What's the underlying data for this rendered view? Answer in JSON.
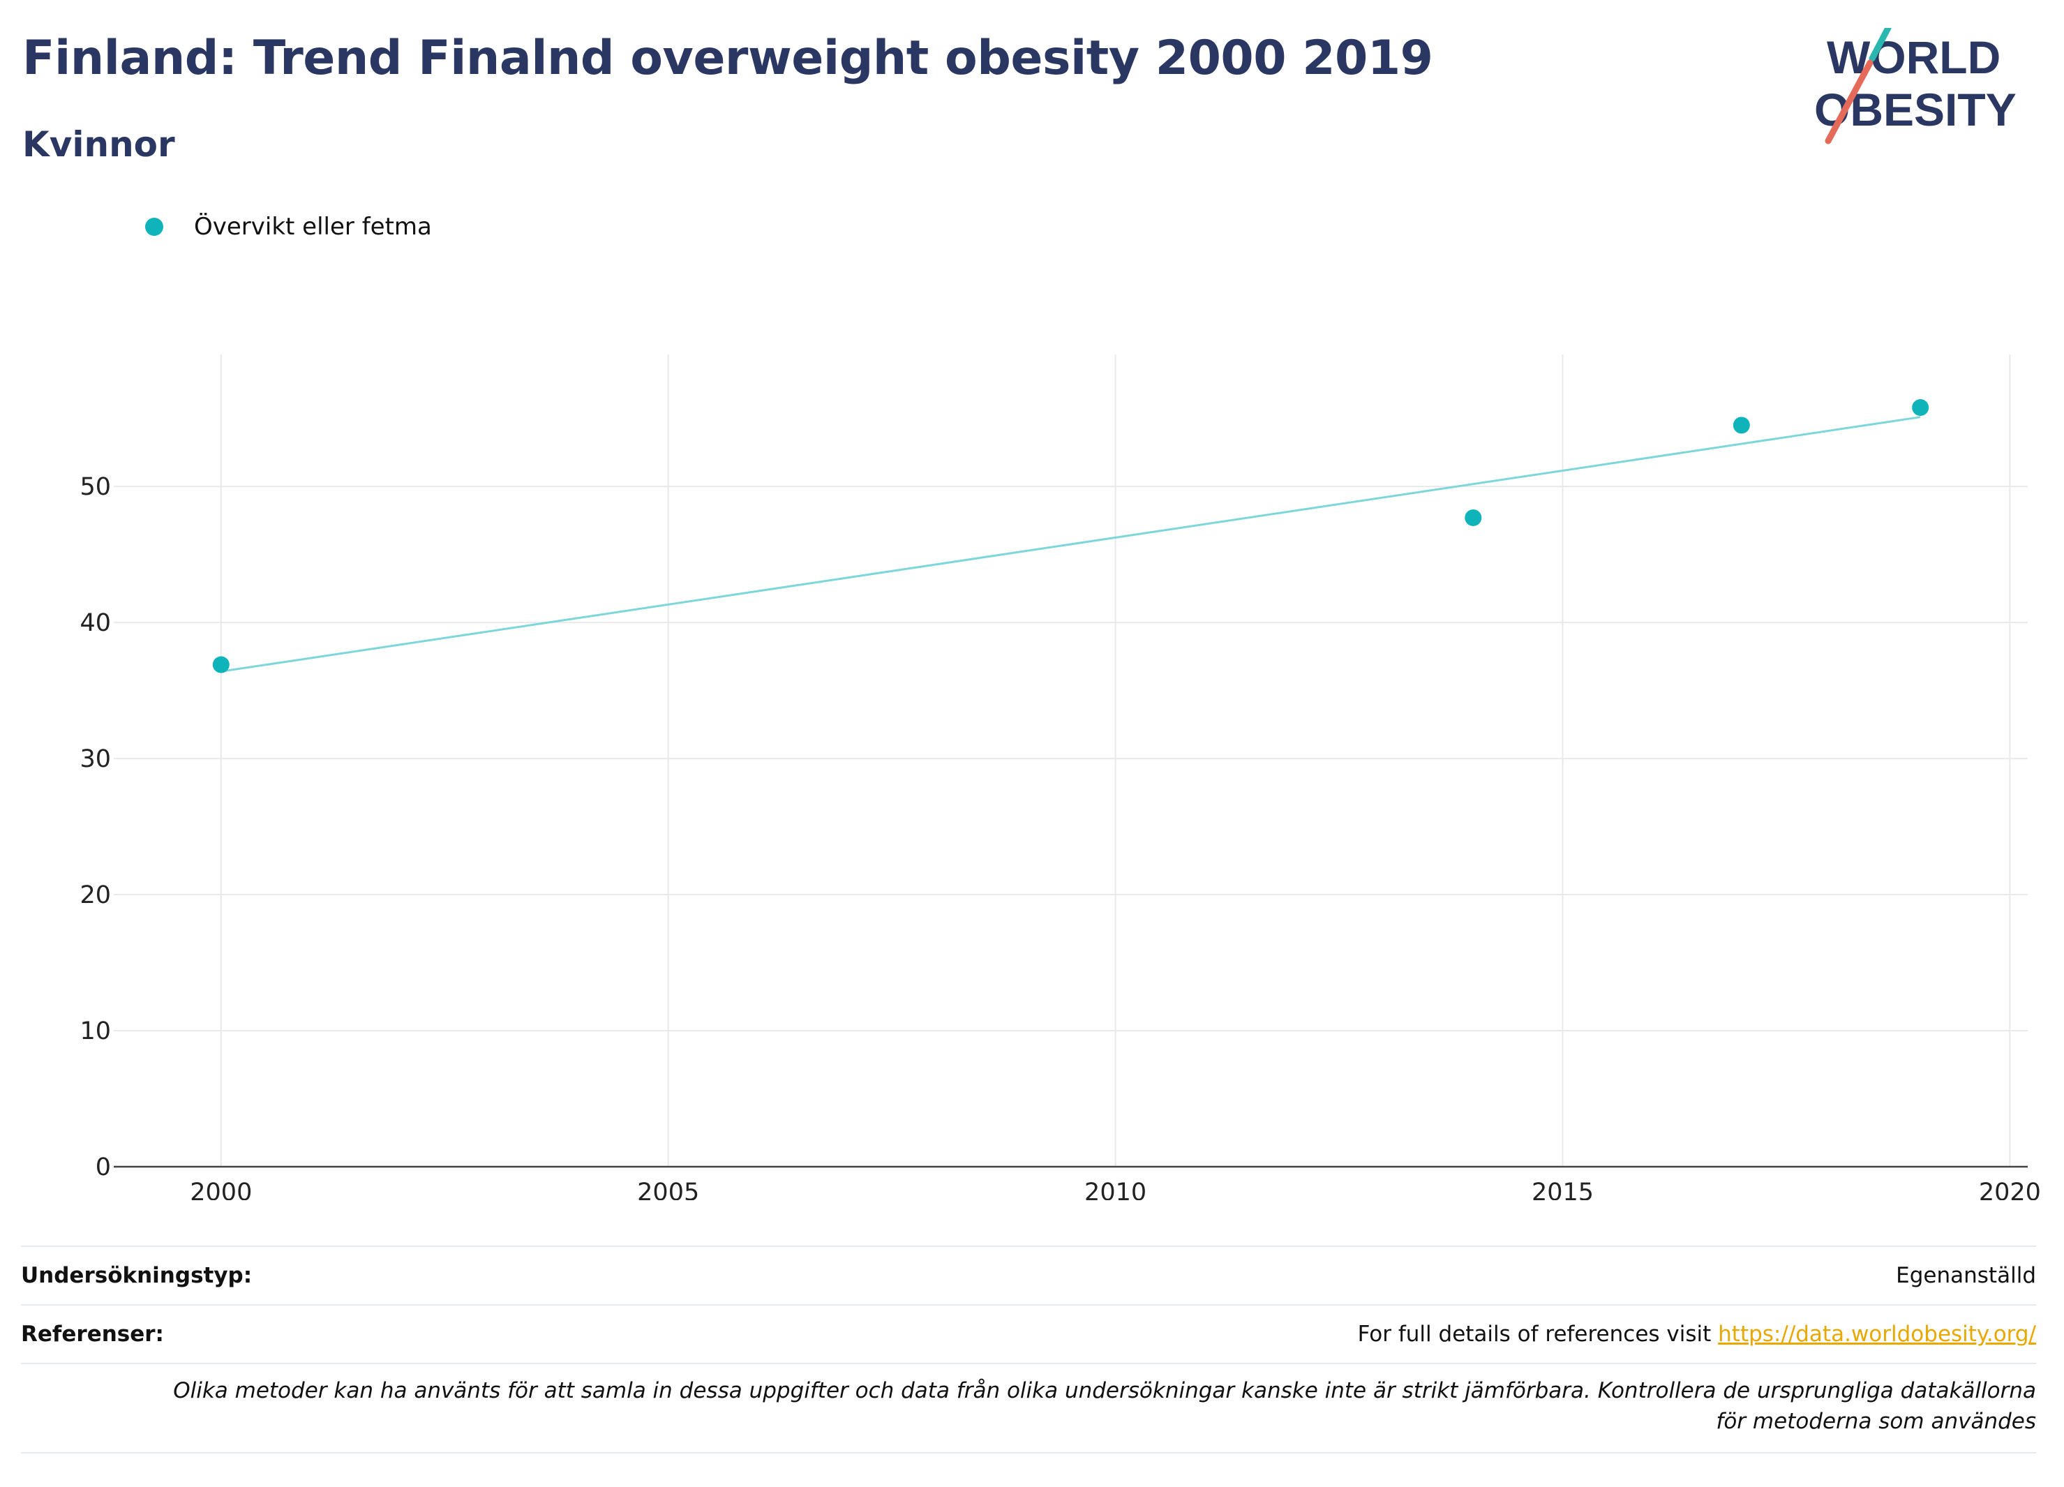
{
  "header": {
    "title": "Finland: Trend Finalnd overweight obesity 2000 2019",
    "subtitle": "Kvinnor"
  },
  "logo": {
    "line1": "WORLD",
    "line2": "OBESITY",
    "accent_teal": "#2ab7b0",
    "accent_red": "#e56a5a",
    "text_color": "#2b3763"
  },
  "legend": {
    "label": "Övervikt eller fetma",
    "color": "#0fb4ba"
  },
  "chart_data": {
    "type": "scatter",
    "x": [
      2000,
      2014,
      2017,
      2019
    ],
    "series": [
      {
        "name": "Övervikt eller fetma",
        "values": [
          36.9,
          47.7,
          54.5,
          55.8
        ],
        "color": "#0fb4ba"
      }
    ],
    "trendline": {
      "x": [
        2000,
        2019
      ],
      "y": [
        36.4,
        55.1
      ],
      "color": "#7dd7da"
    },
    "xlim": [
      1998.8,
      2020.2
    ],
    "ylim": [
      0,
      59.7
    ],
    "x_ticks": [
      2000,
      2005,
      2010,
      2015,
      2020
    ],
    "y_ticks": [
      0,
      10,
      20,
      30,
      40,
      50
    ],
    "grid": true,
    "legend_position": "top-left"
  },
  "footer": {
    "survey_type_label": "Undersökningstyp:",
    "survey_type_value": "Egenanställd",
    "references_label": "Referenser:",
    "references_text": "For full details of references visit ",
    "references_link": "https://data.worldobesity.org/",
    "note": "Olika metoder kan ha använts för att samla in dessa uppgifter och data från olika undersökningar kanske inte är strikt jämförbara. Kontrollera de ursprungliga datakällorna för metoderna som användes"
  }
}
